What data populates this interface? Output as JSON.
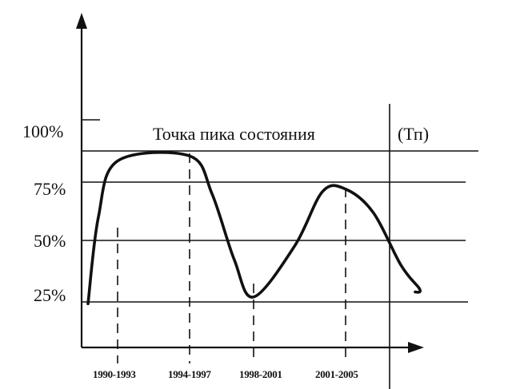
{
  "chart_data": {
    "type": "line",
    "y_tick_labels": [
      "100%",
      "75%",
      "50%",
      "25%"
    ],
    "y_ticks": [
      100,
      75,
      50,
      25
    ],
    "x_tick_labels": [
      "1990-1993",
      "1994-1997",
      "1998-2001",
      "2001-2005"
    ],
    "annotation_left": "Точка пика состояния",
    "annotation_right": "(Тп)",
    "series": [
      {
        "x": [
          0,
          0.35,
          1,
          2,
          2.7,
          3.4,
          4,
          4.9,
          5.5,
          6,
          6.55,
          7.1,
          7.45
        ],
        "values": [
          24,
          60,
          92,
          96,
          70,
          42,
          27,
          48,
          71,
          72,
          62,
          40,
          31
        ]
      }
    ],
    "ylim": [
      0,
      100
    ],
    "xlim": [
      -0.5,
      7.8
    ],
    "grid": true,
    "dashed_markers": [
      1,
      2,
      4,
      6
    ]
  }
}
